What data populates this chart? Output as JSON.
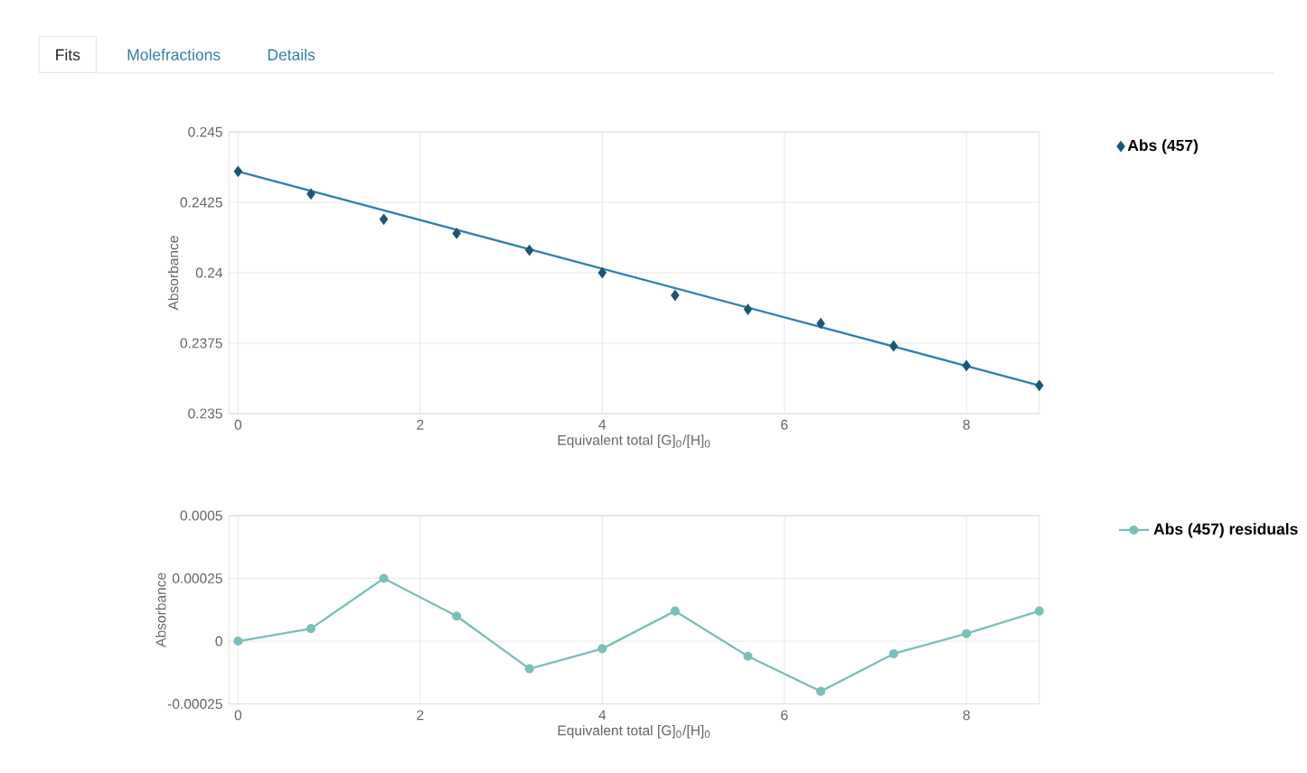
{
  "chart_data": [
    {
      "type": "scatter",
      "annotations": [
        "Fits",
        "Molefractions",
        "Details"
      ],
      "xlabel": "Equivalent total [G]$_{0}$/[H]$_{0}$",
      "ylabel": "Absorbance",
      "x": [
        0,
        0.8,
        1.6,
        2.4,
        3.2,
        4.0,
        4.8,
        5.6,
        6.4,
        7.2,
        8.0,
        8.8
      ],
      "series": [
        {
          "name": "Abs (457)",
          "marker": "diamond",
          "color": "#1b5675",
          "values": [
            0.2436,
            0.2428,
            0.2419,
            0.2414,
            0.2408,
            0.24,
            0.2392,
            0.2387,
            0.2382,
            0.2374,
            0.2367,
            0.236
          ]
        },
        {
          "type": "line",
          "marker": "none",
          "color": "#2e7fb5",
          "x": [
            0,
            8.8
          ],
          "values": [
            0.2436,
            0.236
          ]
        }
      ],
      "xlim": [
        -0.1,
        8.8
      ],
      "ylim": [
        0.235,
        0.245
      ],
      "xticks": [
        0,
        2,
        4,
        6,
        8
      ],
      "yticks": [
        0.235,
        0.2375,
        0.24,
        0.2425,
        0.245
      ],
      "grid": true,
      "legend": "top right"
    },
    {
      "type": "line",
      "xlabel": "Equivalent total [G]$_{0}$/[H]$_{0}$",
      "ylabel": "Absorbance",
      "x": [
        0,
        0.8,
        1.6,
        2.4,
        3.2,
        4.0,
        4.8,
        5.6,
        6.4,
        7.2,
        8.0,
        8.8
      ],
      "series": [
        {
          "name": "Abs (457) residuals",
          "marker": "circle",
          "color": "#7abfb8",
          "values": [
            0,
            5e-05,
            0.00025,
            0.0001,
            -0.00011,
            -3e-05,
            0.00012,
            -6e-05,
            -0.0002,
            -5e-05,
            3e-05,
            0.00012
          ]
        }
      ],
      "xlim": [
        -0.1,
        8.8
      ],
      "ylim": [
        -0.00025,
        0.0005
      ],
      "xticks": [
        0,
        2,
        4,
        6,
        8
      ],
      "yticks": [
        -0.00025,
        0,
        0.00025,
        0.0005
      ],
      "grid": true,
      "legend": "top right"
    }
  ]
}
